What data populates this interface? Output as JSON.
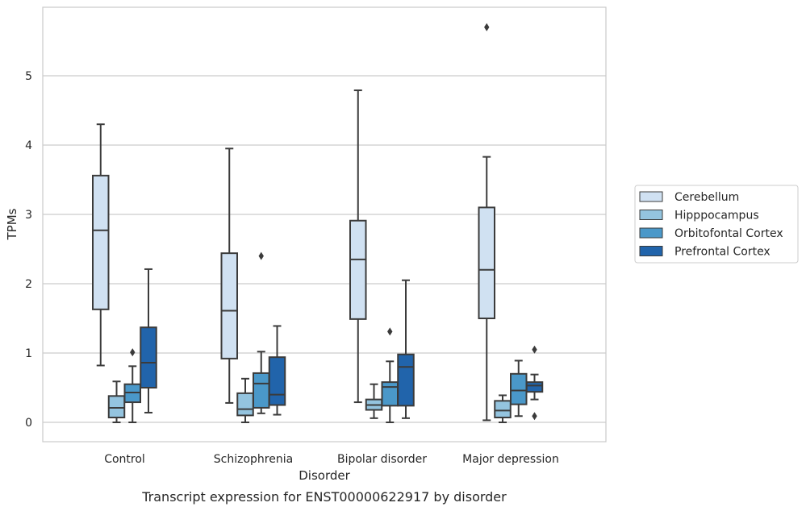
{
  "chart_data": {
    "type": "boxplot",
    "caption": "Transcript expression for ENST00000622917 by disorder",
    "xlabel": "Disorder",
    "ylabel": "TPMs",
    "ylim": [
      -0.28,
      6.0
    ],
    "yticks": [
      0,
      1,
      2,
      3,
      4,
      5
    ],
    "grid": "horizontal",
    "legend_position": "right",
    "categories": [
      "Control",
      "Schizophrenia",
      "Bipolar disorder",
      "Major depression"
    ],
    "series": [
      {
        "name": "Cerebellum",
        "color": "#d0e1f2",
        "boxes": [
          {
            "whislo": 0.82,
            "q1": 1.63,
            "med": 2.77,
            "q3": 3.56,
            "whishi": 4.3,
            "fliers": []
          },
          {
            "whislo": 0.28,
            "q1": 0.92,
            "med": 1.61,
            "q3": 2.44,
            "whishi": 3.95,
            "fliers": []
          },
          {
            "whislo": 0.29,
            "q1": 1.49,
            "med": 2.35,
            "q3": 2.91,
            "whishi": 4.79,
            "fliers": []
          },
          {
            "whislo": 0.03,
            "q1": 1.5,
            "med": 2.2,
            "q3": 3.1,
            "whishi": 3.83,
            "fliers": [
              5.7
            ]
          }
        ]
      },
      {
        "name": "Hipppocampus",
        "color": "#94c4df",
        "boxes": [
          {
            "whislo": 0.0,
            "q1": 0.07,
            "med": 0.21,
            "q3": 0.38,
            "whishi": 0.59,
            "fliers": []
          },
          {
            "whislo": 0.0,
            "q1": 0.1,
            "med": 0.19,
            "q3": 0.42,
            "whishi": 0.63,
            "fliers": []
          },
          {
            "whislo": 0.06,
            "q1": 0.18,
            "med": 0.25,
            "q3": 0.33,
            "whishi": 0.55,
            "fliers": []
          },
          {
            "whislo": 0.0,
            "q1": 0.07,
            "med": 0.17,
            "q3": 0.31,
            "whishi": 0.39,
            "fliers": []
          }
        ]
      },
      {
        "name": "Orbitofontal Cortex",
        "color": "#4a98c9",
        "boxes": [
          {
            "whislo": 0.0,
            "q1": 0.29,
            "med": 0.43,
            "q3": 0.55,
            "whishi": 0.81,
            "fliers": [
              1.01
            ]
          },
          {
            "whislo": 0.13,
            "q1": 0.21,
            "med": 0.56,
            "q3": 0.71,
            "whishi": 1.02,
            "fliers": [
              2.4
            ]
          },
          {
            "whislo": 0.0,
            "q1": 0.24,
            "med": 0.51,
            "q3": 0.58,
            "whishi": 0.88,
            "fliers": [
              1.31
            ]
          },
          {
            "whislo": 0.09,
            "q1": 0.26,
            "med": 0.46,
            "q3": 0.7,
            "whishi": 0.89,
            "fliers": []
          }
        ]
      },
      {
        "name": "Prefrontal Cortex",
        "color": "#2164ab",
        "boxes": [
          {
            "whislo": 0.14,
            "q1": 0.5,
            "med": 0.86,
            "q3": 1.37,
            "whishi": 2.21,
            "fliers": []
          },
          {
            "whislo": 0.11,
            "q1": 0.25,
            "med": 0.4,
            "q3": 0.94,
            "whishi": 1.39,
            "fliers": []
          },
          {
            "whislo": 0.06,
            "q1": 0.24,
            "med": 0.8,
            "q3": 0.98,
            "whishi": 2.05,
            "fliers": []
          },
          {
            "whislo": 0.33,
            "q1": 0.44,
            "med": 0.53,
            "q3": 0.58,
            "whishi": 0.69,
            "fliers": [
              0.09,
              1.05
            ]
          }
        ]
      }
    ]
  }
}
